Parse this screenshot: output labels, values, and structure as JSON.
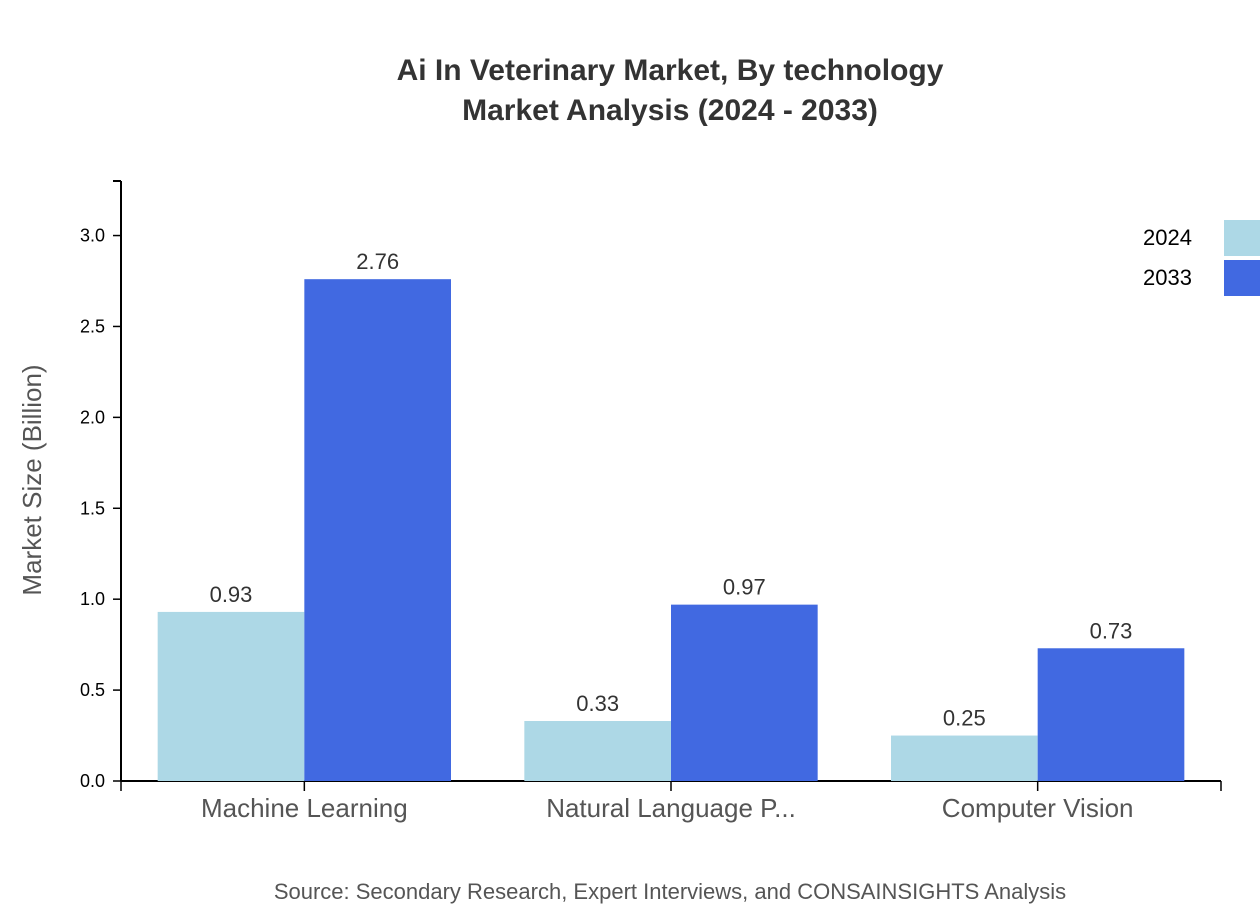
{
  "chart_data": {
    "type": "bar",
    "title_lines": [
      "Ai In Veterinary Market, By technology",
      "Market Analysis (2024 - 2033)"
    ],
    "ylabel": "Market Size (Billion)",
    "xlabel": "",
    "categories": [
      "Machine Learning",
      "Natural Language P...",
      "Computer Vision"
    ],
    "series": [
      {
        "name": "2024",
        "color": "#add8e6",
        "values": [
          0.93,
          0.33,
          0.25
        ]
      },
      {
        "name": "2033",
        "color": "#4169e1",
        "values": [
          2.76,
          0.97,
          0.73
        ]
      }
    ],
    "ylim": [
      0,
      3.3
    ],
    "yticks": [
      "0.0",
      "0.5",
      "1.0",
      "1.5",
      "2.0",
      "2.5",
      "3.0"
    ],
    "grid": false,
    "legend_position": "top-right"
  },
  "source": "Source: Secondary Research, Expert Interviews, and CONSAINSIGHTS Analysis"
}
